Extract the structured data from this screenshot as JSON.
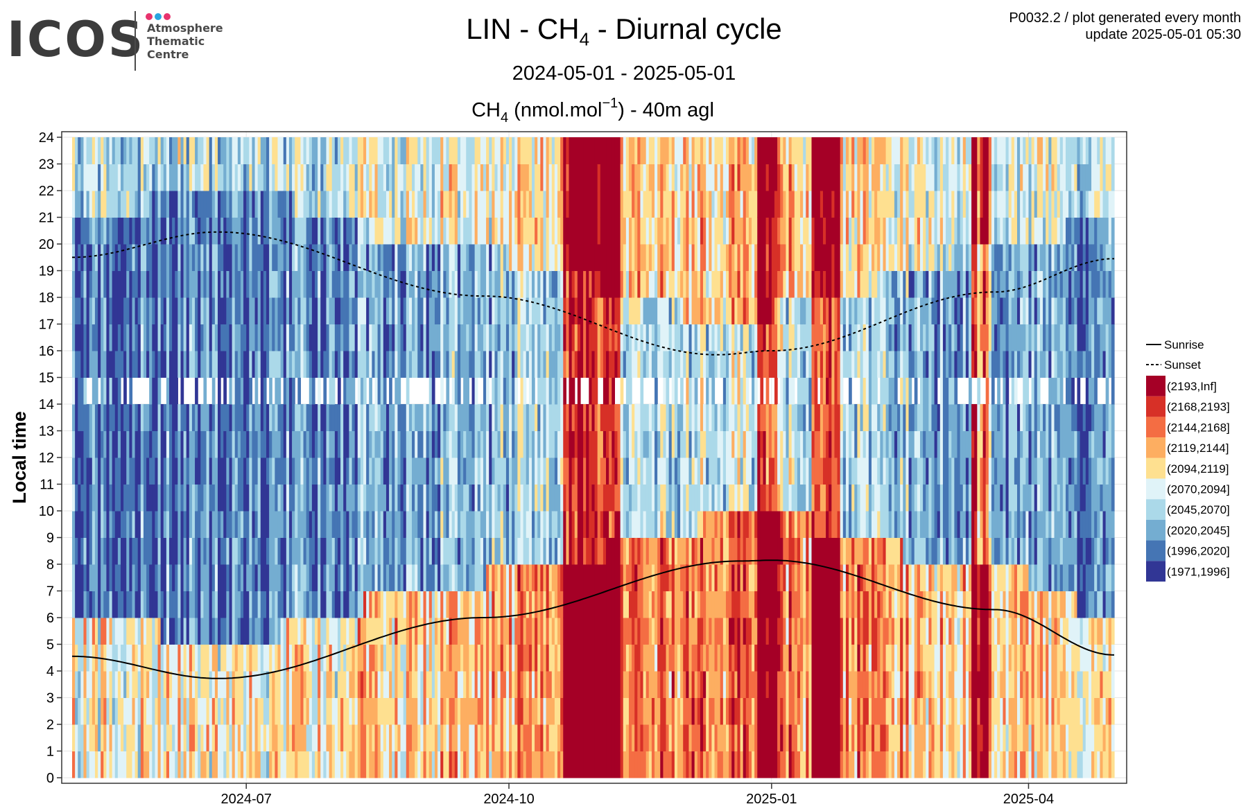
{
  "logo": {
    "wordmark": "ICOS",
    "subtitle_lines": [
      "Atmosphere",
      "Thematic",
      "Centre"
    ],
    "dot_colors": [
      "#e8336d",
      "#2aa5e0",
      "#e8336d"
    ]
  },
  "header": {
    "title_prefix": "LIN - CH",
    "title_sub": "4",
    "title_suffix": " - Diurnal cycle",
    "period": "2024-05-01 - 2025-05-01",
    "meta_line1": "P0032.2 / plot generated every month",
    "meta_line2": "update  2025-05-01 05:30"
  },
  "chart_data": {
    "type": "heatmap",
    "title": {
      "species": "CH",
      "species_sub": "4",
      "unit_open": " (nmol.mol",
      "unit_sup": "−1",
      "unit_close": ") - 40m agl"
    },
    "xlabel": "",
    "ylabel": "Local time",
    "x_range": [
      "2024-05-01",
      "2025-05-01"
    ],
    "x_ticks": [
      "2024-07-01",
      "2024-10-01",
      "2025-01-01",
      "2025-04-01"
    ],
    "x_tick_labels": [
      "2024-07",
      "2024-10",
      "2025-01",
      "2025-04"
    ],
    "y_range": [
      0,
      24
    ],
    "y_ticks": [
      0,
      1,
      2,
      3,
      4,
      5,
      6,
      7,
      8,
      9,
      10,
      11,
      12,
      13,
      14,
      15,
      16,
      17,
      18,
      19,
      20,
      21,
      22,
      23,
      24
    ],
    "grid": true,
    "legend_position": "right",
    "bins": [
      {
        "label": "(2193,Inf]",
        "color": "#a50026"
      },
      {
        "label": "(2168,2193]",
        "color": "#d73027"
      },
      {
        "label": "(2144,2168]",
        "color": "#f46d43"
      },
      {
        "label": "(2119,2144]",
        "color": "#fdae61"
      },
      {
        "label": "(2094,2119]",
        "color": "#fee090"
      },
      {
        "label": "(2070,2094]",
        "color": "#e0f3f8"
      },
      {
        "label": "(2045,2070]",
        "color": "#abd9e9"
      },
      {
        "label": "(2020,2045]",
        "color": "#74add1"
      },
      {
        "label": "(1996,2020]",
        "color": "#4575b4"
      },
      {
        "label": "(1971,1996]",
        "color": "#313695"
      }
    ],
    "lines": [
      {
        "name": "Sunrise",
        "style": "solid",
        "dates": [
          "2024-05-01",
          "2024-06-21",
          "2024-09-22",
          "2024-12-21",
          "2025-01-01",
          "2025-03-20",
          "2025-05-01"
        ],
        "hours": [
          4.55,
          3.72,
          6.0,
          8.12,
          8.15,
          6.3,
          4.6
        ]
      },
      {
        "name": "Sunset",
        "style": "dashed",
        "dates": [
          "2024-05-01",
          "2024-06-21",
          "2024-09-22",
          "2024-12-13",
          "2025-01-01",
          "2025-03-20",
          "2025-05-01"
        ],
        "hours": [
          19.5,
          20.45,
          18.05,
          15.85,
          16.0,
          18.2,
          19.45
        ]
      }
    ],
    "polluted_periods": [
      {
        "start": "2024-10-20",
        "end": "2024-11-08"
      },
      {
        "start": "2024-12-27",
        "end": "2025-01-02"
      },
      {
        "start": "2025-01-15",
        "end": "2025-01-24"
      },
      {
        "start": "2025-03-12",
        "end": "2025-03-18"
      }
    ],
    "missing_hour": 14
  }
}
